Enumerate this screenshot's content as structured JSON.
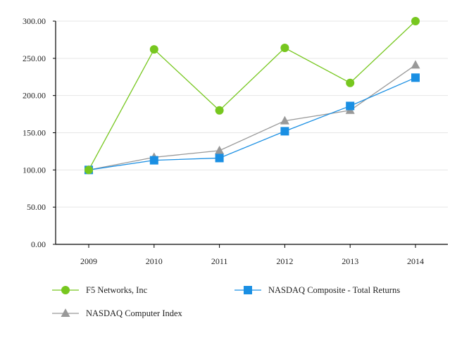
{
  "chart_data": {
    "type": "line",
    "title": "",
    "xlabel": "",
    "ylabel": "",
    "categories": [
      "2009",
      "2010",
      "2011",
      "2012",
      "2013",
      "2014"
    ],
    "ylim": [
      0,
      300
    ],
    "yticks": [
      0,
      50,
      100,
      150,
      200,
      250,
      300
    ],
    "ytick_labels": [
      "0.00",
      "50.00",
      "100.00",
      "150.00",
      "200.00",
      "250.00",
      "300.00"
    ],
    "grid": true,
    "legend_position": "bottom",
    "series": [
      {
        "name": "F5 Networks, Inc",
        "marker": "circle",
        "color": "#77c71f",
        "values": [
          100,
          262,
          180,
          264,
          217,
          300
        ]
      },
      {
        "name": "NASDAQ Composite - Total Returns",
        "marker": "square",
        "color": "#1a8fe3",
        "values": [
          100,
          113,
          116,
          152,
          186,
          224
        ]
      },
      {
        "name": "NASDAQ Computer Index",
        "marker": "triangle",
        "color": "#999999",
        "values": [
          100,
          117,
          126,
          166,
          180,
          241
        ]
      }
    ]
  }
}
